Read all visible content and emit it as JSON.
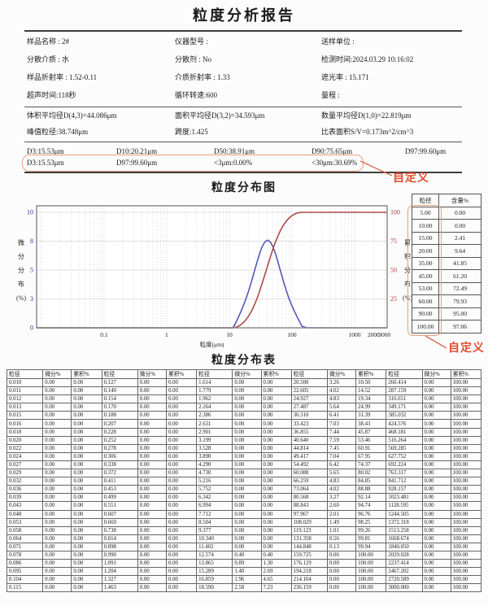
{
  "title": "粒度分析报告",
  "info_grid": [
    [
      "样品名称 : 2#",
      "仪器型号 :",
      "送样单位 :"
    ],
    [
      "分散介质 : 水",
      "分散剂 : No",
      "检测时间:2024.03.29 10:16:02"
    ],
    [
      "样品折射率 : 1.52-0.11",
      "介质折射率 : 1.33",
      "遮光率 : 15.171"
    ],
    [
      "超声时间:118秒",
      "循环转速:600",
      "量程 :"
    ]
  ],
  "summary_grid": [
    [
      "体积平均径D(4,3)=44.086μm",
      "面积平均径D(3,2)=34.593μm",
      "数量平均径D(1,0)=22.819μm"
    ],
    [
      "峰值粒径:38.748μm",
      "跨度:1.425",
      "比表面积S/V=0.173m^2/cm^3"
    ]
  ],
  "d_values": [
    "D3:15.53μm",
    "D10:20.21μm",
    "D50:38.91μm",
    "D90:75.65μm",
    "D97:99.60μm"
  ],
  "custom_values": [
    "D3:15.53μm",
    "D97:99.60μm",
    "<3μm:0.00%",
    "<30μm:30.69%"
  ],
  "annotations": {
    "label": "自定义",
    "accent_color": "#e04b30",
    "box_color": "#e89d7d"
  },
  "side_table": {
    "headers": [
      "粒径",
      "含量%"
    ],
    "rows": [
      [
        "5.00",
        "0.00"
      ],
      [
        "10.00",
        "0.00"
      ],
      [
        "15.00",
        "2.41"
      ],
      [
        "20.00",
        "9.64"
      ],
      [
        "35.00",
        "41.85"
      ],
      [
        "45.00",
        "61.20"
      ],
      [
        "53.00",
        "72.49"
      ],
      [
        "60.00",
        "79.93"
      ],
      [
        "90.00",
        "95.00"
      ],
      [
        "100.00",
        "97.06"
      ]
    ]
  },
  "dist_table": {
    "title": "粒度分布表",
    "header_group": [
      "粒径",
      "微分%",
      "累积%"
    ],
    "groups": 5,
    "rows": [
      [
        "0.010",
        "0.00",
        "0.00",
        "0.127",
        "0.00",
        "0.00",
        "1.614",
        "0.00",
        "0.00",
        "20.500",
        "3.26",
        "10.50",
        "260.414",
        "0.00",
        "100.00"
      ],
      [
        "0.011",
        "0.00",
        "0.00",
        "0.140",
        "0.00",
        "0.00",
        "1.779",
        "0.00",
        "0.00",
        "22.605",
        "4.02",
        "14.52",
        "287.159",
        "0.00",
        "100.00"
      ],
      [
        "0.012",
        "0.00",
        "0.00",
        "0.154",
        "0.00",
        "0.00",
        "1.962",
        "0.00",
        "0.00",
        "24.927",
        "4.83",
        "19.34",
        "316.651",
        "0.00",
        "100.00"
      ],
      [
        "0.013",
        "0.00",
        "0.00",
        "0.170",
        "0.00",
        "0.00",
        "2.164",
        "0.00",
        "0.00",
        "27.487",
        "5.64",
        "24.99",
        "349.171",
        "0.00",
        "100.00"
      ],
      [
        "0.015",
        "0.00",
        "0.00",
        "0.188",
        "0.00",
        "0.00",
        "2.386",
        "0.00",
        "0.00",
        "30.310",
        "6.41",
        "31.39",
        "385.032",
        "0.00",
        "100.00"
      ],
      [
        "0.016",
        "0.00",
        "0.00",
        "0.207",
        "0.00",
        "0.00",
        "2.631",
        "0.00",
        "0.00",
        "33.423",
        "7.03",
        "38.43",
        "424.576",
        "0.00",
        "100.00"
      ],
      [
        "0.018",
        "0.00",
        "0.00",
        "0.228",
        "0.00",
        "0.00",
        "2.901",
        "0.00",
        "0.00",
        "36.855",
        "7.44",
        "45.87",
        "468.181",
        "0.00",
        "100.00"
      ],
      [
        "0.020",
        "0.00",
        "0.00",
        "0.252",
        "0.00",
        "0.00",
        "3.199",
        "0.00",
        "0.00",
        "40.640",
        "7.59",
        "53.46",
        "516.264",
        "0.00",
        "100.00"
      ],
      [
        "0.022",
        "0.00",
        "0.00",
        "0.278",
        "0.00",
        "0.00",
        "3.528",
        "0.00",
        "0.00",
        "44.814",
        "7.45",
        "60.91",
        "569.285",
        "0.00",
        "100.00"
      ],
      [
        "0.024",
        "0.00",
        "0.00",
        "0.306",
        "0.00",
        "0.00",
        "3.890",
        "0.00",
        "0.00",
        "49.417",
        "7.04",
        "67.95",
        "627.752",
        "0.00",
        "100.00"
      ],
      [
        "0.027",
        "0.00",
        "0.00",
        "0.338",
        "0.00",
        "0.00",
        "4.290",
        "0.00",
        "0.00",
        "54.492",
        "6.42",
        "74.37",
        "692.224",
        "0.00",
        "100.00"
      ],
      [
        "0.029",
        "0.00",
        "0.00",
        "0.372",
        "0.00",
        "0.00",
        "4.730",
        "0.00",
        "0.00",
        "60.088",
        "5.65",
        "80.02",
        "763.317",
        "0.00",
        "100.00"
      ],
      [
        "0.032",
        "0.00",
        "0.00",
        "0.411",
        "0.00",
        "0.00",
        "5.216",
        "0.00",
        "0.00",
        "66.259",
        "4.83",
        "84.85",
        "841.712",
        "0.00",
        "100.00"
      ],
      [
        "0.036",
        "0.00",
        "0.00",
        "0.453",
        "0.00",
        "0.00",
        "5.752",
        "0.00",
        "0.00",
        "73.064",
        "4.02",
        "88.88",
        "928.157",
        "0.00",
        "100.00"
      ],
      [
        "0.039",
        "0.00",
        "0.00",
        "0.499",
        "0.00",
        "0.00",
        "6.342",
        "0.00",
        "0.00",
        "80.568",
        "3.27",
        "92.14",
        "1023.481",
        "0.00",
        "100.00"
      ],
      [
        "0.043",
        "0.00",
        "0.00",
        "0.551",
        "0.00",
        "0.00",
        "6.994",
        "0.00",
        "0.00",
        "88.843",
        "2.60",
        "94.74",
        "1128.595",
        "0.00",
        "100.00"
      ],
      [
        "0.048",
        "0.00",
        "0.00",
        "0.607",
        "0.00",
        "0.00",
        "7.712",
        "0.00",
        "0.00",
        "97.967",
        "2.01",
        "96.76",
        "1244.505",
        "0.00",
        "100.00"
      ],
      [
        "0.053",
        "0.00",
        "0.00",
        "0.669",
        "0.00",
        "0.00",
        "8.504",
        "0.00",
        "0.00",
        "108.029",
        "1.49",
        "98.25",
        "1372.318",
        "0.00",
        "100.00"
      ],
      [
        "0.058",
        "0.00",
        "0.00",
        "0.738",
        "0.00",
        "0.00",
        "9.377",
        "0.00",
        "0.00",
        "119.123",
        "1.01",
        "99.26",
        "1513.258",
        "0.00",
        "100.00"
      ],
      [
        "0.064",
        "0.00",
        "0.00",
        "0.814",
        "0.00",
        "0.00",
        "10.340",
        "0.00",
        "0.00",
        "131.358",
        "0.56",
        "99.81",
        "1668.674",
        "0.00",
        "100.00"
      ],
      [
        "0.071",
        "0.00",
        "0.00",
        "0.898",
        "0.00",
        "0.00",
        "11.402",
        "0.00",
        "0.00",
        "144.848",
        "0.13",
        "99.94",
        "1840.050",
        "0.00",
        "100.00"
      ],
      [
        "0.078",
        "0.00",
        "0.00",
        "0.990",
        "0.00",
        "0.00",
        "12.574",
        "0.40",
        "0.40",
        "159.725",
        "0.06",
        "100.00",
        "2029.028",
        "0.00",
        "100.00"
      ],
      [
        "0.086",
        "0.00",
        "0.00",
        "1.091",
        "0.00",
        "0.00",
        "13.865",
        "0.89",
        "1.30",
        "176.129",
        "0.00",
        "100.00",
        "2237.414",
        "0.00",
        "100.00"
      ],
      [
        "0.095",
        "0.00",
        "0.00",
        "1.204",
        "0.00",
        "0.00",
        "15.289",
        "1.40",
        "2.69",
        "194.218",
        "0.00",
        "100.00",
        "2467.202",
        "0.00",
        "100.00"
      ],
      [
        "0.104",
        "0.00",
        "0.00",
        "1.327",
        "0.00",
        "0.00",
        "16.859",
        "1.96",
        "4.65",
        "214.164",
        "0.00",
        "100.00",
        "2720.589",
        "0.00",
        "100.00"
      ],
      [
        "0.115",
        "0.00",
        "0.00",
        "1.463",
        "0.00",
        "0.00",
        "18.590",
        "2.58",
        "7.23",
        "236.159",
        "0.00",
        "100.00",
        "3000.000",
        "0.00",
        "100.00"
      ]
    ]
  },
  "chart_data": {
    "type": "line",
    "title": "粒度分布图",
    "xlabel": "粒度(μm)",
    "ylabel_left": "微分分布(%)",
    "ylabel_right": "累积分布(%)",
    "x_scale": "log",
    "x_range": [
      0.0084,
      3300
    ],
    "x_ticks": [
      [
        0.1,
        "0.1"
      ],
      [
        1,
        "1"
      ],
      [
        10,
        "10"
      ],
      [
        100,
        "100"
      ],
      [
        1000,
        "1000"
      ],
      [
        2000,
        "2000"
      ],
      [
        3000,
        "3000"
      ]
    ],
    "y_left_max": 10,
    "y_left_ticks": [
      [
        0,
        "0"
      ],
      [
        2.5,
        "3"
      ],
      [
        5,
        "5"
      ],
      [
        7.5,
        "8"
      ],
      [
        10,
        "10"
      ]
    ],
    "y_right_max": 100,
    "y_right_ticks": [
      [
        25,
        "25"
      ],
      [
        50,
        "50"
      ],
      [
        75,
        "75"
      ],
      [
        100,
        "100"
      ]
    ],
    "axis_colors": {
      "left": "#2d2da8",
      "right": "#b03a3a"
    },
    "grid": true,
    "series": [
      {
        "name": "微分分布",
        "axis": "left",
        "color": "#5656bc",
        "x": [
          0.0084,
          10.34,
          11.402,
          12.574,
          13.865,
          15.289,
          16.859,
          18.59,
          20.5,
          22.605,
          24.927,
          27.487,
          30.31,
          33.423,
          36.855,
          40.64,
          44.814,
          49.417,
          54.492,
          60.088,
          66.259,
          73.064,
          80.568,
          88.843,
          97.967,
          108.029,
          119.123,
          131.358,
          144.848,
          159.725,
          176.129,
          3300
        ],
        "y": [
          0,
          0,
          0,
          0.4,
          0.89,
          1.4,
          1.96,
          2.58,
          3.26,
          4.02,
          4.83,
          5.64,
          6.41,
          7.03,
          7.44,
          7.59,
          7.45,
          7.04,
          6.42,
          5.65,
          4.83,
          4.02,
          3.27,
          2.6,
          2.01,
          1.49,
          1.01,
          0.56,
          0.13,
          0.06,
          0,
          0
        ]
      },
      {
        "name": "累积分布",
        "axis": "right",
        "color": "#b04848",
        "x": [
          0.0084,
          10.34,
          11.402,
          12.574,
          13.865,
          15.289,
          16.859,
          18.59,
          20.5,
          22.605,
          24.927,
          27.487,
          30.31,
          33.423,
          36.855,
          40.64,
          44.814,
          49.417,
          54.492,
          60.088,
          66.259,
          73.064,
          80.568,
          88.843,
          97.967,
          108.029,
          119.123,
          131.358,
          144.848,
          159.725,
          3300
        ],
        "y": [
          0,
          0,
          0,
          0.4,
          1.3,
          2.69,
          4.65,
          7.23,
          10.5,
          14.52,
          19.34,
          24.99,
          31.39,
          38.43,
          45.87,
          53.46,
          60.91,
          67.95,
          74.37,
          80.02,
          84.85,
          88.88,
          92.14,
          94.74,
          96.76,
          98.25,
          99.26,
          99.81,
          99.94,
          100,
          100
        ]
      }
    ]
  }
}
